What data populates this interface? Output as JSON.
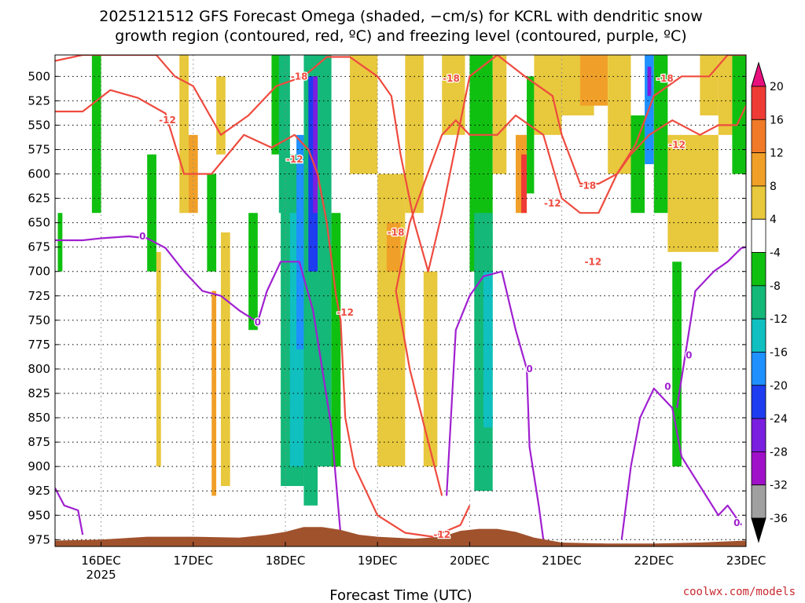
{
  "chart_data": {
    "type": "heatmap",
    "title_lines": [
      "2025121512 GFS Forecast Omega (shaded, −cm/s) for KCRL with dendritic snow",
      "growth region (contoured, red, ºC) and freezing level (contoured, purple, ºC)"
    ],
    "xlabel": "Forecast Time (UTC)",
    "credit": "coolwx.com/models",
    "x_ticks": [
      {
        "day": 16,
        "label": "16DEC",
        "sublabel": "2025"
      },
      {
        "day": 17,
        "label": "17DEC"
      },
      {
        "day": 18,
        "label": "18DEC"
      },
      {
        "day": 19,
        "label": "19DEC"
      },
      {
        "day": 20,
        "label": "20DEC"
      },
      {
        "day": 21,
        "label": "21DEC"
      },
      {
        "day": 22,
        "label": "22DEC"
      },
      {
        "day": 23,
        "label": "23DEC"
      }
    ],
    "xlim": [
      15.5,
      23.0
    ],
    "y_ticks": [
      500,
      525,
      550,
      575,
      600,
      625,
      650,
      675,
      700,
      725,
      750,
      775,
      800,
      825,
      850,
      875,
      900,
      925,
      950,
      975
    ],
    "ylim": [
      478,
      982
    ],
    "colorbar": {
      "labels": [
        20,
        16,
        12,
        8,
        4,
        -4,
        -8,
        -12,
        -16,
        -20,
        -24,
        -28,
        -32,
        -36
      ],
      "colors": [
        "#e8107d",
        "#ef3b36",
        "#f07a28",
        "#f0a028",
        "#e8c83c",
        "#ffffff",
        "#10c010",
        "#14b878",
        "#10c0c0",
        "#1e90ff",
        "#1e3cf0",
        "#7a1ee0",
        "#a010c8",
        "#a0a0a0",
        "#000000"
      ]
    },
    "omega_cells": [
      {
        "x": [
          15.53,
          15.58
        ],
        "y": [
          640,
          700
        ],
        "v": -6
      },
      {
        "x": [
          15.9,
          16.0
        ],
        "y": [
          478,
          640
        ],
        "v": -6
      },
      {
        "x": [
          16.5,
          16.6
        ],
        "y": [
          580,
          700
        ],
        "v": -6
      },
      {
        "x": [
          16.6,
          16.65
        ],
        "y": [
          680,
          900
        ],
        "v": 5
      },
      {
        "x": [
          16.85,
          16.95
        ],
        "y": [
          478,
          640
        ],
        "v": 5
      },
      {
        "x": [
          16.95,
          17.05
        ],
        "y": [
          560,
          640
        ],
        "v": 10
      },
      {
        "x": [
          17.15,
          17.25
        ],
        "y": [
          600,
          700
        ],
        "v": -6
      },
      {
        "x": [
          17.2,
          17.25
        ],
        "y": [
          720,
          930
        ],
        "v": 10
      },
      {
        "x": [
          17.25,
          17.35
        ],
        "y": [
          500,
          580
        ],
        "v": 5
      },
      {
        "x": [
          17.3,
          17.4
        ],
        "y": [
          660,
          920
        ],
        "v": 6
      },
      {
        "x": [
          17.6,
          17.7
        ],
        "y": [
          640,
          760
        ],
        "v": -6
      },
      {
        "x": [
          17.85,
          17.95
        ],
        "y": [
          478,
          580
        ],
        "v": -6
      },
      {
        "x": [
          17.93,
          18.05
        ],
        "y": [
          478,
          640
        ],
        "v": -8
      },
      {
        "x": [
          17.95,
          18.2
        ],
        "y": [
          580,
          920
        ],
        "v": -8
      },
      {
        "x": [
          18.05,
          18.2
        ],
        "y": [
          640,
          900
        ],
        "v": -12
      },
      {
        "x": [
          18.12,
          18.2
        ],
        "y": [
          560,
          780
        ],
        "v": -16
      },
      {
        "x": [
          18.2,
          18.35
        ],
        "y": [
          478,
          940
        ],
        "v": -10
      },
      {
        "x": [
          18.25,
          18.35
        ],
        "y": [
          500,
          700
        ],
        "v": -20
      },
      {
        "x": [
          18.3,
          18.35
        ],
        "y": [
          500,
          640
        ],
        "v": -26
      },
      {
        "x": [
          18.35,
          18.5
        ],
        "y": [
          478,
          900
        ],
        "v": -10
      },
      {
        "x": [
          18.5,
          18.6
        ],
        "y": [
          640,
          900
        ],
        "v": -6
      },
      {
        "x": [
          18.7,
          19.0
        ],
        "y": [
          478,
          600
        ],
        "v": 5
      },
      {
        "x": [
          19.0,
          19.3
        ],
        "y": [
          600,
          900
        ],
        "v": 6
      },
      {
        "x": [
          19.1,
          19.25
        ],
        "y": [
          650,
          700
        ],
        "v": 10
      },
      {
        "x": [
          19.3,
          19.5
        ],
        "y": [
          478,
          640
        ],
        "v": 5
      },
      {
        "x": [
          19.5,
          19.65
        ],
        "y": [
          700,
          900
        ],
        "v": 5
      },
      {
        "x": [
          19.7,
          19.95
        ],
        "y": [
          478,
          560
        ],
        "v": 5
      },
      {
        "x": [
          20.0,
          20.25
        ],
        "y": [
          478,
          700
        ],
        "v": -6
      },
      {
        "x": [
          20.05,
          20.25
        ],
        "y": [
          640,
          925
        ],
        "v": -8
      },
      {
        "x": [
          20.15,
          20.25
        ],
        "y": [
          700,
          860
        ],
        "v": -12
      },
      {
        "x": [
          20.25,
          20.4
        ],
        "y": [
          478,
          600
        ],
        "v": 5
      },
      {
        "x": [
          20.5,
          20.62
        ],
        "y": [
          560,
          640
        ],
        "v": 12
      },
      {
        "x": [
          20.56,
          20.62
        ],
        "y": [
          580,
          640
        ],
        "v": 20
      },
      {
        "x": [
          20.62,
          20.7
        ],
        "y": [
          500,
          620
        ],
        "v": -6
      },
      {
        "x": [
          20.7,
          21.0
        ],
        "y": [
          478,
          560
        ],
        "v": 5
      },
      {
        "x": [
          21.0,
          21.35
        ],
        "y": [
          478,
          540
        ],
        "v": 5
      },
      {
        "x": [
          21.2,
          21.5
        ],
        "y": [
          478,
          530
        ],
        "v": 10
      },
      {
        "x": [
          21.5,
          21.75
        ],
        "y": [
          478,
          600
        ],
        "v": 5
      },
      {
        "x": [
          21.75,
          21.9
        ],
        "y": [
          540,
          640
        ],
        "v": -6
      },
      {
        "x": [
          21.9,
          22.0
        ],
        "y": [
          478,
          590
        ],
        "v": -16
      },
      {
        "x": [
          21.93,
          21.97
        ],
        "y": [
          490,
          520
        ],
        "v": -26
      },
      {
        "x": [
          22.0,
          22.15
        ],
        "y": [
          478,
          640
        ],
        "v": -6
      },
      {
        "x": [
          22.15,
          22.7
        ],
        "y": [
          560,
          680
        ],
        "v": 5
      },
      {
        "x": [
          22.2,
          22.3
        ],
        "y": [
          690,
          900
        ],
        "v": -6
      },
      {
        "x": [
          22.5,
          22.7
        ],
        "y": [
          478,
          540
        ],
        "v": 5
      },
      {
        "x": [
          22.7,
          22.85
        ],
        "y": [
          478,
          560
        ],
        "v": 8
      },
      {
        "x": [
          22.85,
          23.0
        ],
        "y": [
          478,
          600
        ],
        "v": -6
      }
    ],
    "contours": [
      {
        "name": "dgz_warm",
        "color": "#ee4b3f",
        "points": [
          [
            15.5,
            536
          ],
          [
            15.8,
            536
          ],
          [
            16.1,
            514
          ],
          [
            16.4,
            522
          ],
          [
            16.7,
            538
          ],
          [
            16.9,
            600
          ],
          [
            17.2,
            600
          ],
          [
            17.55,
            560
          ],
          [
            17.85,
            573
          ],
          [
            18.1,
            560
          ],
          [
            18.25,
            575
          ],
          [
            18.35,
            600
          ],
          [
            18.45,
            650
          ],
          [
            18.55,
            725
          ],
          [
            18.6,
            750
          ],
          [
            18.65,
            850
          ],
          [
            18.75,
            900
          ],
          [
            19.0,
            950
          ],
          [
            19.3,
            968
          ],
          [
            19.6,
            972
          ],
          [
            19.9,
            960
          ],
          [
            20.0,
            940
          ]
        ]
      },
      {
        "name": "dgz_warm_east",
        "color": "#ee4b3f",
        "points": [
          [
            19.7,
            930
          ],
          [
            19.35,
            800
          ],
          [
            19.2,
            720
          ],
          [
            19.35,
            650
          ],
          [
            19.7,
            560
          ],
          [
            19.85,
            545
          ],
          [
            20.0,
            560
          ],
          [
            20.3,
            560
          ],
          [
            20.5,
            540
          ],
          [
            20.8,
            560
          ],
          [
            21.0,
            625
          ],
          [
            21.2,
            640
          ],
          [
            21.4,
            640
          ],
          [
            21.6,
            600
          ],
          [
            21.75,
            580
          ],
          [
            21.95,
            560
          ],
          [
            22.2,
            545
          ],
          [
            22.5,
            560
          ],
          [
            22.7,
            550
          ],
          [
            22.9,
            550
          ],
          [
            23.0,
            530
          ]
        ]
      },
      {
        "name": "dgz_cold",
        "color": "#ee4b3f",
        "points": [
          [
            15.5,
            484
          ],
          [
            15.8,
            478
          ],
          [
            16.2,
            478
          ],
          [
            16.6,
            478
          ],
          [
            16.8,
            500
          ],
          [
            17.0,
            510
          ],
          [
            17.3,
            560
          ],
          [
            17.6,
            540
          ],
          [
            17.9,
            510
          ],
          [
            18.2,
            500
          ],
          [
            18.45,
            480
          ],
          [
            18.7,
            480
          ],
          [
            19.0,
            500
          ],
          [
            19.15,
            520
          ],
          [
            19.25,
            580
          ],
          [
            19.4,
            650
          ],
          [
            19.55,
            700
          ],
          [
            19.7,
            640
          ],
          [
            20.0,
            500
          ],
          [
            20.3,
            478
          ],
          [
            20.6,
            500
          ],
          [
            20.9,
            520
          ],
          [
            21.0,
            560
          ],
          [
            21.2,
            610
          ],
          [
            21.4,
            610
          ],
          [
            21.6,
            600
          ],
          [
            21.8,
            570
          ],
          [
            22.0,
            520
          ],
          [
            22.3,
            500
          ],
          [
            22.6,
            500
          ],
          [
            22.8,
            478
          ],
          [
            23.0,
            478
          ]
        ]
      },
      {
        "name": "freezing_level",
        "color": "#a020d0",
        "points": [
          [
            15.5,
            668
          ],
          [
            15.8,
            668
          ],
          [
            16.0,
            666
          ],
          [
            16.3,
            664
          ],
          [
            16.5,
            666
          ],
          [
            16.7,
            676
          ],
          [
            16.9,
            700
          ],
          [
            17.1,
            720
          ],
          [
            17.3,
            725
          ],
          [
            17.5,
            740
          ],
          [
            17.7,
            752
          ],
          [
            17.8,
            720
          ],
          [
            17.95,
            690
          ],
          [
            18.15,
            690
          ],
          [
            18.3,
            740
          ],
          [
            18.5,
            860
          ],
          [
            18.6,
            970
          ]
        ]
      },
      {
        "name": "freezing_level_mid",
        "color": "#a020d0",
        "points": [
          [
            19.75,
            930
          ],
          [
            19.85,
            760
          ],
          [
            20.0,
            725
          ],
          [
            20.15,
            705
          ],
          [
            20.35,
            700
          ],
          [
            20.5,
            760
          ],
          [
            20.62,
            800
          ],
          [
            20.65,
            880
          ],
          [
            20.75,
            940
          ],
          [
            20.8,
            975
          ]
        ]
      },
      {
        "name": "freezing_level_east",
        "color": "#a020d0",
        "points": [
          [
            21.65,
            975
          ],
          [
            21.75,
            900
          ],
          [
            21.85,
            850
          ],
          [
            22.0,
            820
          ],
          [
            22.2,
            840
          ],
          [
            22.3,
            890
          ],
          [
            22.5,
            920
          ],
          [
            22.7,
            950
          ],
          [
            22.8,
            940
          ],
          [
            22.95,
            960
          ]
        ]
      },
      {
        "name": "freezing_level_upper_east",
        "color": "#a020d0",
        "points": [
          [
            22.25,
            840
          ],
          [
            22.35,
            780
          ],
          [
            22.45,
            720
          ],
          [
            22.65,
            700
          ],
          [
            22.8,
            690
          ],
          [
            22.95,
            676
          ],
          [
            23.0,
            675
          ]
        ]
      },
      {
        "name": "freezing_level_west_low",
        "color": "#a020d0",
        "points": [
          [
            15.5,
            922
          ],
          [
            15.6,
            940
          ],
          [
            15.75,
            945
          ],
          [
            15.8,
            970
          ]
        ]
      }
    ],
    "contour_labels": [
      {
        "text": "-12",
        "x": 16.72,
        "y": 545,
        "color": "#ee4b3f"
      },
      {
        "text": "-18",
        "x": 18.15,
        "y": 500,
        "color": "#ee4b3f"
      },
      {
        "text": "-18",
        "x": 19.8,
        "y": 502,
        "color": "#ee4b3f"
      },
      {
        "text": "-18",
        "x": 22.12,
        "y": 502,
        "color": "#ee4b3f"
      },
      {
        "text": "-12",
        "x": 18.1,
        "y": 585,
        "color": "#ee4b3f"
      },
      {
        "text": "-18",
        "x": 19.2,
        "y": 660,
        "color": "#ee4b3f"
      },
      {
        "text": "-12",
        "x": 18.65,
        "y": 742,
        "color": "#ee4b3f"
      },
      {
        "text": "-12",
        "x": 20.9,
        "y": 630,
        "color": "#ee4b3f"
      },
      {
        "text": "-18",
        "x": 21.28,
        "y": 612,
        "color": "#ee4b3f"
      },
      {
        "text": "-12",
        "x": 22.25,
        "y": 570,
        "color": "#ee4b3f"
      },
      {
        "text": "-12",
        "x": 21.34,
        "y": 690,
        "color": "#ee4b3f"
      },
      {
        "text": "-12",
        "x": 19.7,
        "y": 970,
        "color": "#ee4b3f"
      },
      {
        "text": "0",
        "x": 16.45,
        "y": 664,
        "color": "#a020d0"
      },
      {
        "text": "0",
        "x": 17.7,
        "y": 752,
        "color": "#a020d0"
      },
      {
        "text": "0",
        "x": 20.65,
        "y": 800,
        "color": "#a020d0"
      },
      {
        "text": "0",
        "x": 22.38,
        "y": 786,
        "color": "#a020d0"
      },
      {
        "text": "0",
        "x": 22.15,
        "y": 818,
        "color": "#a020d0"
      },
      {
        "text": "0",
        "x": 22.9,
        "y": 958,
        "color": "#a020d0"
      }
    ],
    "terrain": {
      "color": "#a0522d",
      "points": [
        [
          15.5,
          976
        ],
        [
          16.0,
          975
        ],
        [
          16.5,
          972
        ],
        [
          17.0,
          972
        ],
        [
          17.5,
          973
        ],
        [
          17.8,
          970
        ],
        [
          18.0,
          967
        ],
        [
          18.2,
          962
        ],
        [
          18.4,
          962
        ],
        [
          18.6,
          965
        ],
        [
          18.8,
          970
        ],
        [
          19.0,
          972
        ],
        [
          19.4,
          974
        ],
        [
          19.7,
          972
        ],
        [
          19.9,
          966
        ],
        [
          20.1,
          964
        ],
        [
          20.3,
          964
        ],
        [
          20.5,
          967
        ],
        [
          20.7,
          973
        ],
        [
          21.0,
          978
        ],
        [
          21.5,
          979
        ],
        [
          22.0,
          979
        ],
        [
          22.5,
          978
        ],
        [
          23.0,
          976
        ]
      ]
    }
  }
}
